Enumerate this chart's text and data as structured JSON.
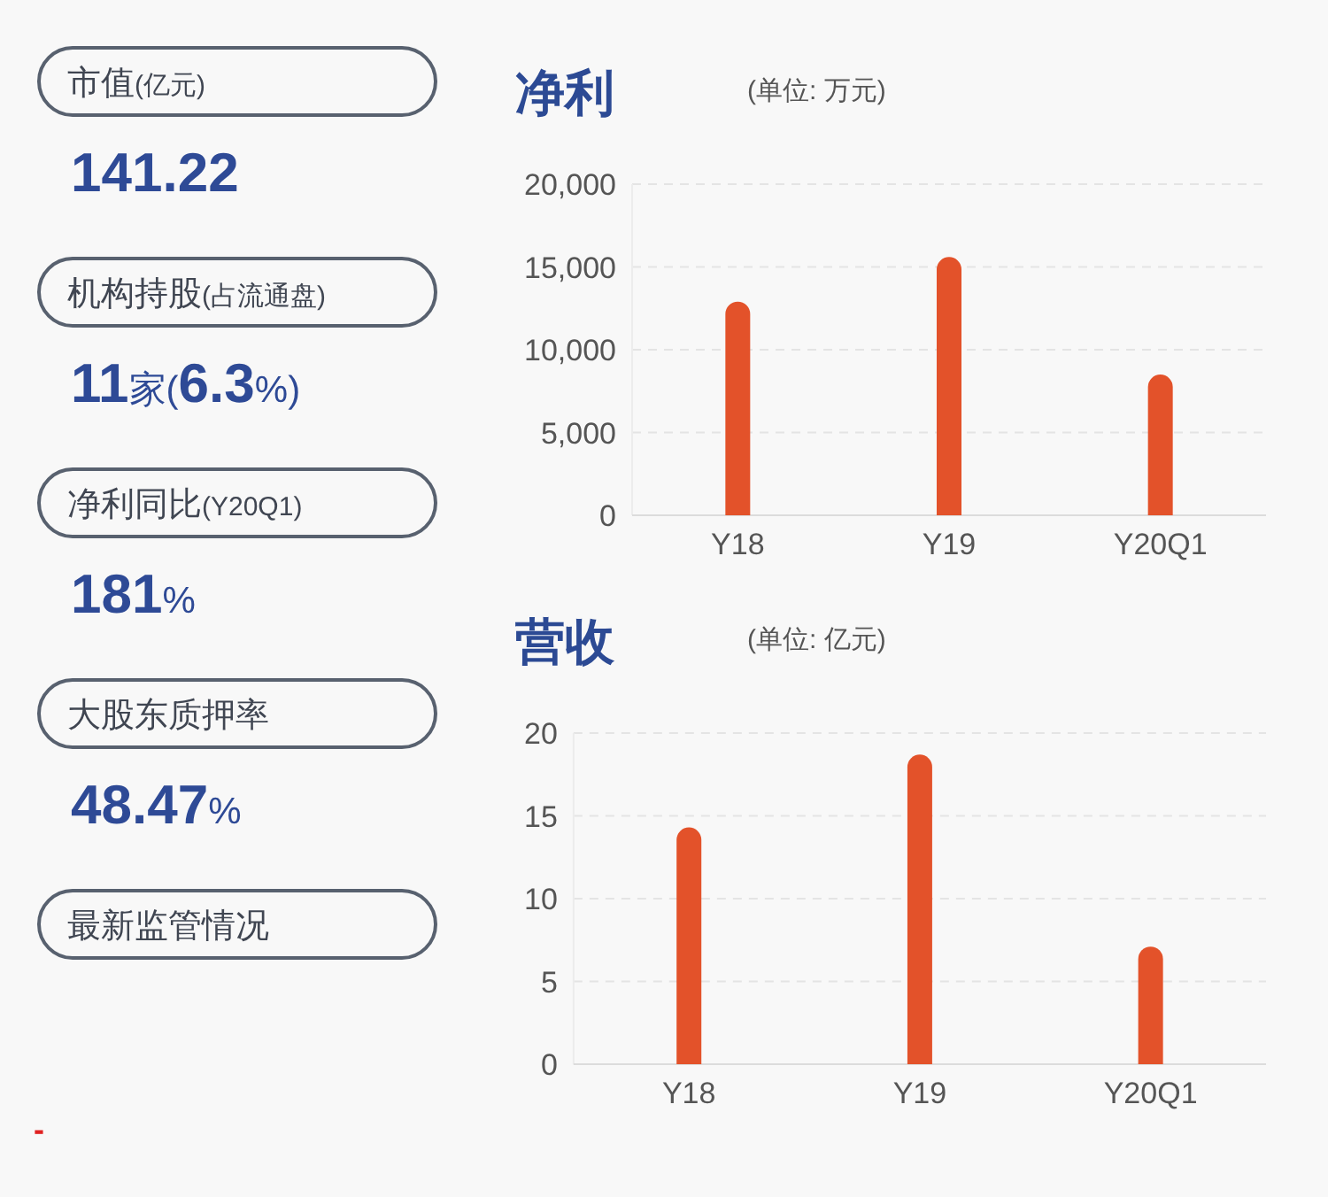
{
  "chart_data": [
    {
      "type": "other",
      "annotations": [
        "市值(亿元)",
        "141.22",
        "机构持股(占流通盘)",
        "11家(6.3%)",
        "净利同比(Y20Q1)",
        "181%",
        "大股东质押率",
        "48.47%",
        "最新监管情况",
        "-"
      ]
    },
    {
      "type": "bar",
      "title": "净利",
      "subtitle": "(单位: 万元)",
      "categories": [
        "Y18",
        "Y19",
        "Y20Q1"
      ],
      "values": [
        12900,
        15600,
        8500
      ],
      "color": "#e3522a",
      "ylim": [
        0,
        20000
      ],
      "yticks": [
        0,
        {
          "value": 5000,
          "label": "5,000"
        },
        {
          "value": 10000,
          "label": "10,000"
        },
        {
          "value": 15000,
          "label": "15,000"
        },
        {
          "value": 20000,
          "label": "20,000"
        }
      ],
      "grid": "y"
    },
    {
      "type": "bar",
      "title": "营收",
      "subtitle": "(单位: 亿元)",
      "categories": [
        "Y18",
        "Y19",
        "Y20Q1"
      ],
      "values": [
        14.3,
        18.7,
        7.1
      ],
      "color": "#e3522a",
      "ylim": [
        0,
        20
      ],
      "yticks": [
        0,
        5,
        10,
        15,
        20
      ],
      "grid": "y"
    }
  ]
}
